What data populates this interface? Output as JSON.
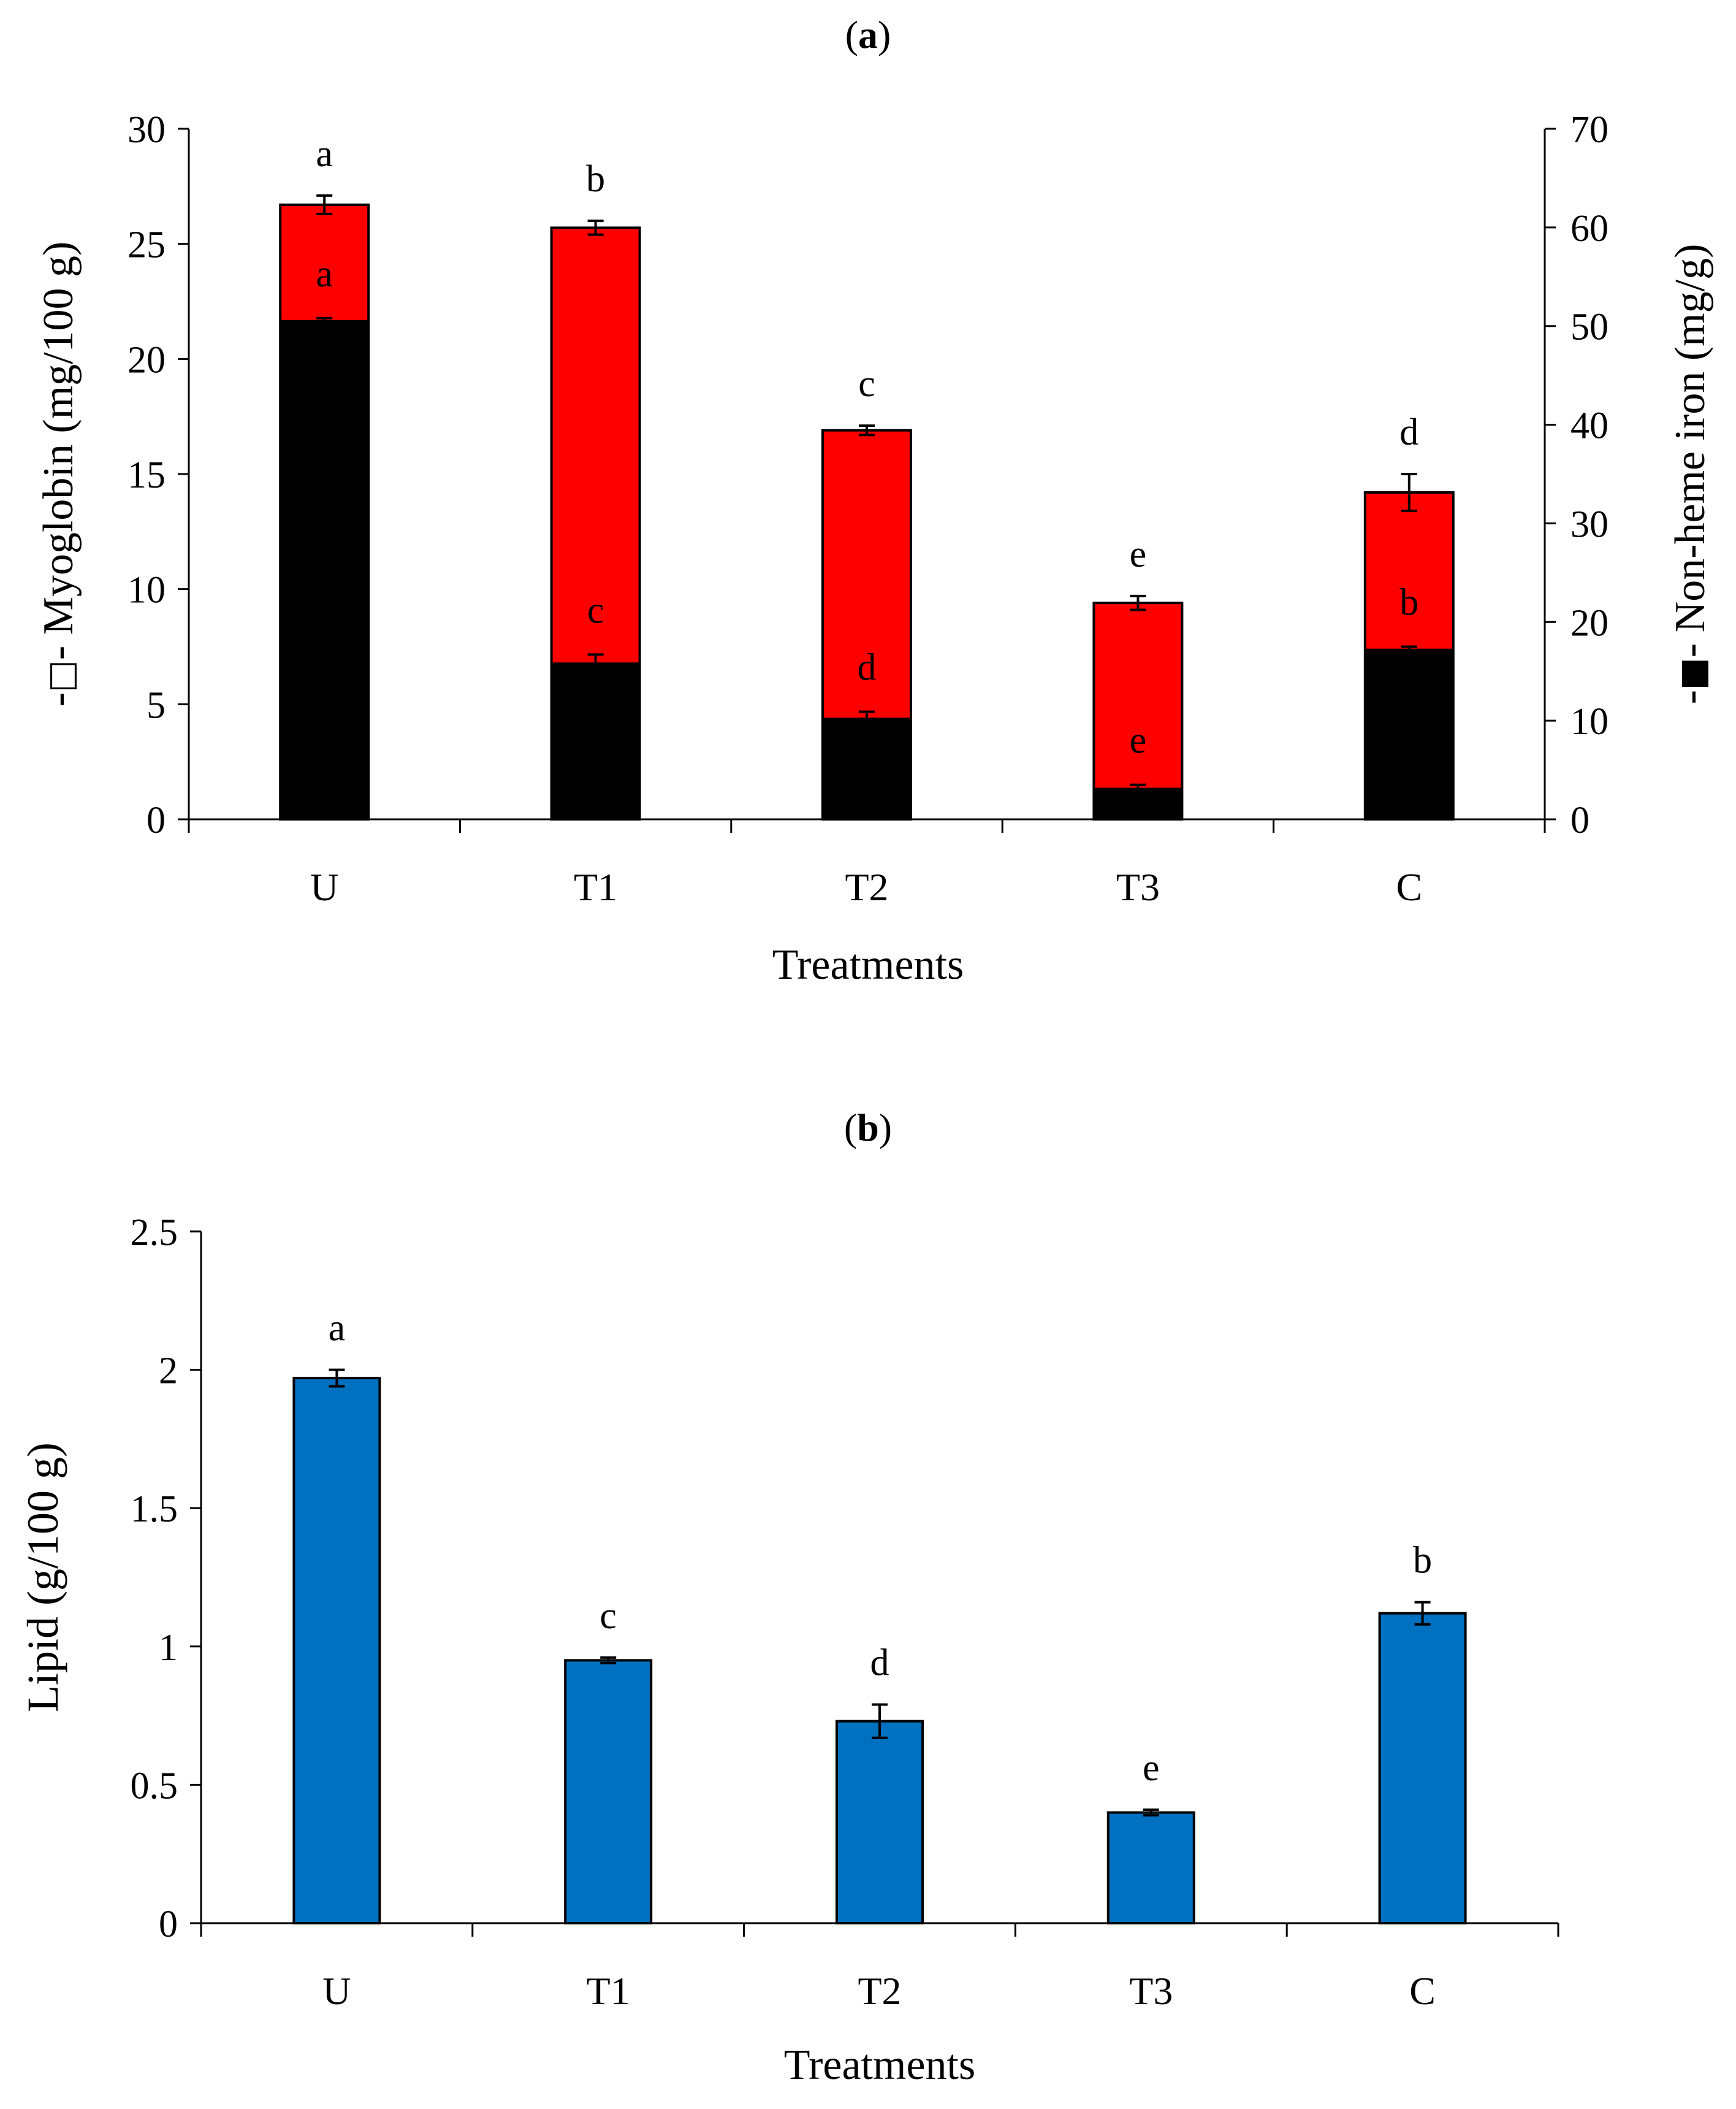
{
  "chart_data": [
    {
      "panel_label": "a",
      "type": "bar",
      "stacked": true,
      "categories": [
        "U",
        "T1",
        "T2",
        "T3",
        "C"
      ],
      "xlabel": "Treatments",
      "ylabel_left_prefix": "-",
      "ylabel_left_marker": "□",
      "ylabel_left_text": "- Myoglobin (mg/100 g)",
      "ylabel_right_prefix": "-",
      "ylabel_right_marker": "■",
      "ylabel_right_text": "- Non-heme iron (mg/g)",
      "ylim_left": [
        0,
        30
      ],
      "yticks_left": [
        "0",
        "5",
        "10",
        "15",
        "20",
        "25",
        "30"
      ],
      "ylim_right": [
        0,
        70
      ],
      "yticks_right": [
        "0",
        "10",
        "20",
        "30",
        "40",
        "50",
        "60",
        "70"
      ],
      "series": [
        {
          "name": "Non-heme iron",
          "axis": "right",
          "color": "#000000",
          "values": [
            50.6,
            15.9,
            10.3,
            3.2,
            17.3
          ],
          "errors": [
            0.2,
            0.8,
            0.6,
            0.3,
            0.2
          ],
          "letters": [
            "a",
            "c",
            "d",
            "e",
            "b"
          ]
        },
        {
          "name": "Myoglobin",
          "axis": "left",
          "color": "#ff0000",
          "values": [
            26.7,
            25.7,
            16.9,
            9.4,
            14.2
          ],
          "errors": [
            0.4,
            0.3,
            0.2,
            0.3,
            0.8
          ],
          "letters": [
            "a",
            "b",
            "c",
            "e",
            "d"
          ]
        }
      ]
    },
    {
      "panel_label": "b",
      "type": "bar",
      "categories": [
        "U",
        "T1",
        "T2",
        "T3",
        "C"
      ],
      "xlabel": "Treatments",
      "ylabel": "Lipid (g/100 g)",
      "ylim": [
        0,
        2.5
      ],
      "yticks": [
        "0",
        "0.5",
        "1",
        "1.5",
        "2",
        "2.5"
      ],
      "series": [
        {
          "name": "Lipid",
          "color": "#0070c0",
          "values": [
            1.97,
            0.95,
            0.73,
            0.4,
            1.12
          ],
          "errors": [
            0.03,
            0.01,
            0.06,
            0.01,
            0.04
          ],
          "letters": [
            "a",
            "c",
            "d",
            "e",
            "b"
          ]
        }
      ]
    }
  ]
}
